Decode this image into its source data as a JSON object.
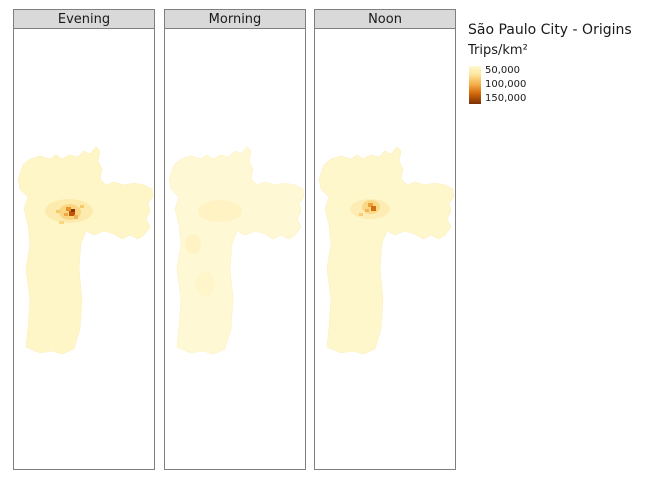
{
  "panels": [
    {
      "label": "Evening"
    },
    {
      "label": "Morning"
    },
    {
      "label": "Noon"
    }
  ],
  "legend": {
    "title": "São Paulo City - Origins",
    "subtitle": "Trips/km²",
    "ticks": [
      "50,000",
      "100,000",
      "150,000"
    ],
    "colors": {
      "low": "#fff8d0",
      "mid": "#f5b04a",
      "high": "#7a2f05"
    }
  },
  "hotspot_intensity": {
    "Evening": "high",
    "Morning": "low",
    "Noon": "medium"
  }
}
